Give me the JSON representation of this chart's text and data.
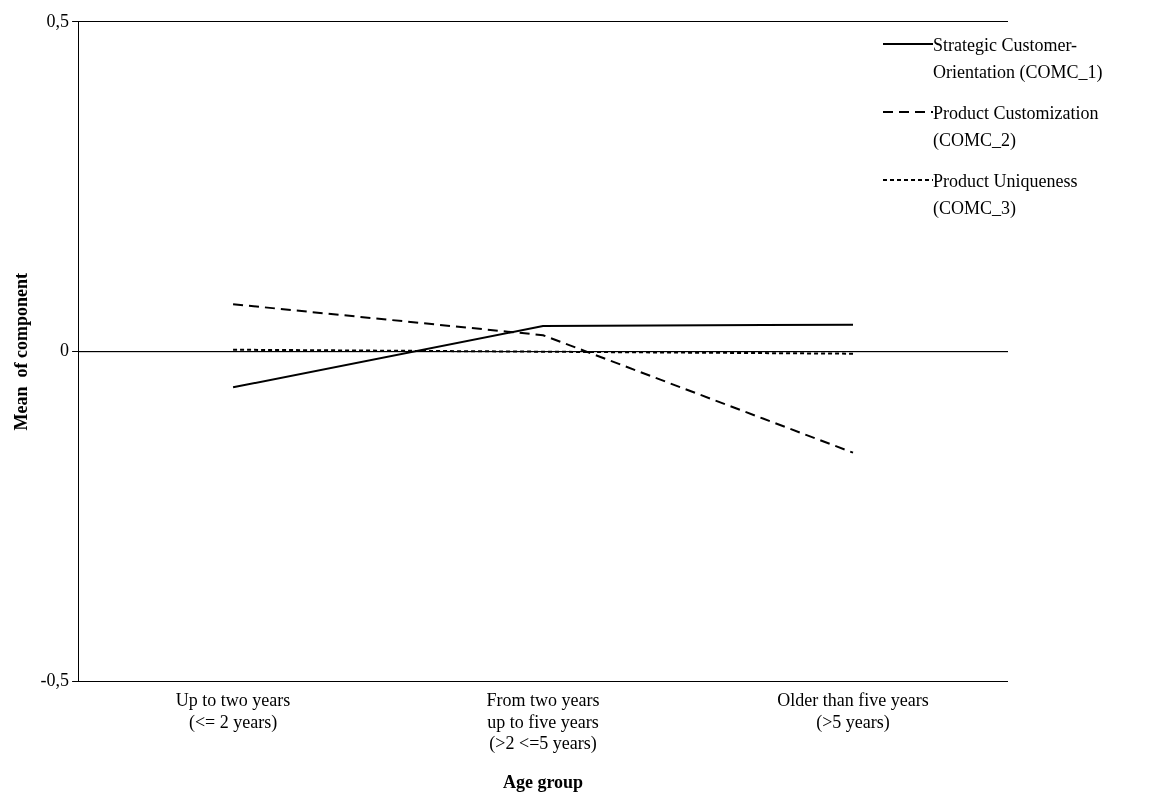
{
  "chart_data": {
    "type": "line",
    "xlabel": "Age group",
    "ylabel": "Mean  of component",
    "categories": [
      "Up to two years\n(<= 2 years)",
      "From two years\nup to five years\n(>2 <=5 years)",
      "Older than five years\n(>5 years)"
    ],
    "series": [
      {
        "name": "Strategic Customer-\nOrientation (COMC_1)",
        "color": "#000000",
        "line_style": "solid",
        "values": [
          -0.054,
          0.039,
          0.041
        ]
      },
      {
        "name": "Product Customization\n(COMC_2)",
        "color": "#000000",
        "line_style": "dashed",
        "values": [
          0.072,
          0.025,
          -0.153
        ]
      },
      {
        "name": "Product Uniqueness\n(COMC_3)",
        "color": "#000000",
        "line_style": "dotted",
        "values": [
          0.003,
          0.0,
          -0.003
        ]
      }
    ],
    "ylim": [
      -0.5,
      0.5
    ],
    "yticks": [
      {
        "value": -0.5,
        "label": "-0,5"
      },
      {
        "value": 0,
        "label": "0"
      },
      {
        "value": 0.5,
        "label": "0,5"
      }
    ],
    "grid": "y",
    "legend": "top right",
    "marker": "none"
  }
}
